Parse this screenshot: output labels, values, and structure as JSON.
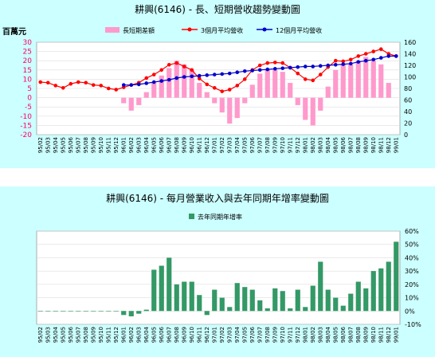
{
  "chart_data": [
    {
      "type": "bar+line",
      "title": "耕興(6146) -  長、短期營收趨勢變動圖",
      "ylabel_left": "百萬元",
      "left_ticks": [
        "30",
        "25",
        "20",
        "15",
        "10",
        "5",
        "0",
        "-5",
        "-10",
        "-15",
        "-20"
      ],
      "right_ticks": [
        "160",
        "140",
        "120",
        "100",
        "80",
        "60",
        "40",
        "20",
        "0"
      ],
      "ylim_left": [
        -20,
        30
      ],
      "ylim_right": [
        0,
        160
      ],
      "grid": true,
      "legend_position": "top",
      "colors": {
        "bar": "#ff99cc",
        "line3": "#ff0000",
        "line12": "#0000cc"
      },
      "categories": [
        "95/02",
        "95/03",
        "95/04",
        "95/05",
        "95/06",
        "95/07",
        "95/08",
        "95/09",
        "95/10",
        "95/11",
        "95/12",
        "96/01",
        "96/02",
        "96/03",
        "96/04",
        "96/05",
        "96/06",
        "96/07",
        "96/08",
        "96/09",
        "96/10",
        "96/11",
        "96/12",
        "97/01",
        "97/02",
        "97/03",
        "97/04",
        "97/05",
        "97/06",
        "97/07",
        "97/08",
        "97/09",
        "97/10",
        "97/11",
        "97/12",
        "98/01",
        "98/02",
        "98/03",
        "98/04",
        "98/05",
        "98/06",
        "98/07",
        "98/08",
        "98/09",
        "98/10",
        "98/11",
        "98/12",
        "99/01"
      ],
      "series": [
        {
          "name": "長短期差額",
          "type": "bar",
          "axis": "left",
          "values": [
            null,
            null,
            null,
            null,
            null,
            null,
            null,
            null,
            null,
            null,
            null,
            -3,
            -7,
            -4,
            3,
            8,
            12,
            16,
            20,
            18,
            15,
            8,
            3,
            -3,
            -8,
            -14,
            -11,
            -3,
            7,
            13,
            15,
            15,
            14,
            8,
            -4,
            -12,
            -15,
            -7,
            6,
            15,
            18,
            18,
            20,
            22,
            20,
            18,
            8,
            null
          ]
        },
        {
          "name": "3個月平均營收",
          "type": "line",
          "axis": "right",
          "values": [
            91,
            90,
            85,
            81,
            88,
            91,
            90,
            86,
            85,
            80,
            78,
            82,
            86,
            90,
            98,
            104,
            112,
            121,
            124,
            118,
            112,
            97,
            87,
            81,
            75,
            78,
            85,
            96,
            112,
            120,
            124,
            125,
            124,
            116,
            106,
            96,
            94,
            104,
            117,
            128,
            127,
            130,
            136,
            140,
            144,
            148,
            140,
            136
          ]
        },
        {
          "name": "12個月平均營收",
          "type": "line",
          "axis": "right",
          "values": [
            null,
            null,
            null,
            null,
            null,
            null,
            null,
            null,
            null,
            null,
            null,
            86,
            86,
            87,
            89,
            91,
            93,
            95,
            98,
            100,
            101,
            102,
            103,
            104,
            105,
            106,
            108,
            110,
            111,
            112,
            113,
            114,
            115,
            116,
            117,
            118,
            118,
            119,
            120,
            121,
            122,
            123,
            126,
            128,
            130,
            133,
            136,
            136
          ]
        }
      ]
    },
    {
      "type": "bar",
      "title": "耕興(6146) -  每月營業收入與去年同期年增率變動圖",
      "yticks": [
        "60%",
        "50%",
        "40%",
        "30%",
        "20%",
        "10%",
        "0%",
        "-10%"
      ],
      "ylim": [
        -10,
        60
      ],
      "grid": true,
      "legend_position": "top",
      "colors": {
        "bar": "#339966"
      },
      "categories": [
        "95/02",
        "95/03",
        "95/04",
        "95/05",
        "95/06",
        "95/07",
        "95/08",
        "95/09",
        "95/10",
        "95/11",
        "95/12",
        "96/01",
        "96/02",
        "96/03",
        "96/04",
        "96/05",
        "96/06",
        "96/07",
        "96/08",
        "96/09",
        "96/10",
        "96/11",
        "96/12",
        "97/01",
        "97/02",
        "97/03",
        "97/04",
        "97/05",
        "97/06",
        "97/07",
        "97/08",
        "97/09",
        "97/10",
        "97/11",
        "97/12",
        "98/01",
        "98/02",
        "98/03",
        "98/04",
        "98/05",
        "98/06",
        "98/07",
        "98/08",
        "98/09",
        "98/10",
        "98/11",
        "98/12",
        "99/01"
      ],
      "series": [
        {
          "name": "去年同期年增率",
          "values": [
            0,
            0,
            0,
            0,
            0,
            0,
            0,
            0,
            0,
            0,
            0,
            -3,
            -4,
            -2,
            1,
            31,
            34,
            40,
            20,
            22,
            22,
            12,
            -3,
            16,
            10,
            3,
            21,
            18,
            16,
            8,
            2,
            17,
            15,
            2,
            16,
            3,
            19,
            37,
            16,
            10,
            4,
            13,
            22,
            17,
            30,
            32,
            37,
            52
          ]
        }
      ]
    }
  ]
}
